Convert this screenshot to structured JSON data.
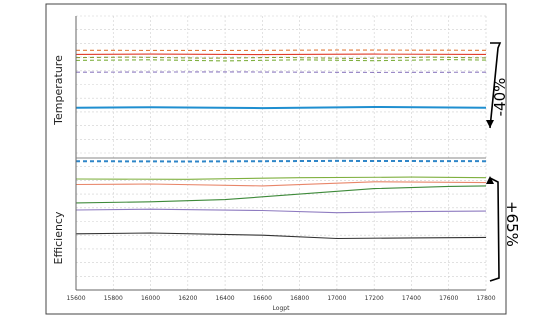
{
  "chart_data": {
    "type": "line",
    "xlabel": "Logpt",
    "x_ticks": [
      "15600",
      "15800",
      "16000",
      "16200",
      "16400",
      "16600",
      "16800",
      "17000",
      "17200",
      "17400",
      "17600",
      "17800"
    ],
    "xlim": [
      15600,
      17800
    ],
    "grid": true,
    "panels": [
      {
        "name": "Temperature",
        "label": "Temperature",
        "series": [
          {
            "color": "#e03a2a",
            "style": "solid",
            "values": [
              [
                15600,
                0.86
              ],
              [
                16000,
                0.861
              ],
              [
                16600,
                0.859
              ],
              [
                17200,
                0.861
              ],
              [
                17800,
                0.86
              ]
            ]
          },
          {
            "color": "#e07a3a",
            "style": "dashed",
            "values": [
              [
                15600,
                0.875
              ],
              [
                16400,
                0.874
              ],
              [
                17000,
                0.876
              ],
              [
                17800,
                0.875
              ]
            ]
          },
          {
            "color": "#8c9a3a",
            "style": "dashed",
            "values": [
              [
                15600,
                0.848
              ],
              [
                15900,
                0.85
              ],
              [
                16300,
                0.846
              ],
              [
                16700,
                0.849
              ],
              [
                17100,
                0.845
              ],
              [
                17500,
                0.85
              ],
              [
                17800,
                0.847
              ]
            ]
          },
          {
            "color": "#7fb03f",
            "style": "dashed",
            "values": [
              [
                15600,
                0.838
              ],
              [
                16000,
                0.84
              ],
              [
                16400,
                0.836
              ],
              [
                16800,
                0.84
              ],
              [
                17200,
                0.837
              ],
              [
                17600,
                0.841
              ],
              [
                17800,
                0.839
              ]
            ]
          },
          {
            "color": "#8e7bc0",
            "style": "dashed",
            "values": [
              [
                15600,
                0.795
              ],
              [
                16400,
                0.796
              ],
              [
                17200,
                0.794
              ],
              [
                17800,
                0.795
              ]
            ]
          },
          {
            "color": "#2f86c8",
            "style": "dashed",
            "values": [
              [
                15600,
                0.47
              ],
              [
                16200,
                0.469
              ],
              [
                17000,
                0.471
              ],
              [
                17800,
                0.47
              ]
            ]
          }
        ]
      },
      {
        "name": "Efficiency",
        "label": "Efficiency",
        "series": [
          {
            "color": "#1f8fd0",
            "style": "solid",
            "values": [
              [
                15600,
                0.665
              ],
              [
                16000,
                0.667
              ],
              [
                16600,
                0.664
              ],
              [
                17200,
                0.668
              ],
              [
                17800,
                0.665
              ]
            ]
          },
          {
            "color": "#7fb03f",
            "style": "solid",
            "values": [
              [
                15600,
                0.405
              ],
              [
                16200,
                0.404
              ],
              [
                16800,
                0.41
              ],
              [
                17400,
                0.412
              ],
              [
                17800,
                0.41
              ]
            ]
          },
          {
            "color": "#e8866a",
            "style": "solid",
            "values": [
              [
                15600,
                0.385
              ],
              [
                16000,
                0.387
              ],
              [
                16600,
                0.38
              ],
              [
                17200,
                0.395
              ],
              [
                17800,
                0.392
              ]
            ]
          },
          {
            "color": "#3e8a3a",
            "style": "solid",
            "values": [
              [
                15600,
                0.318
              ],
              [
                16000,
                0.322
              ],
              [
                16400,
                0.33
              ],
              [
                16800,
                0.35
              ],
              [
                17200,
                0.37
              ],
              [
                17600,
                0.378
              ],
              [
                17800,
                0.38
              ]
            ]
          },
          {
            "color": "#8e7bc0",
            "style": "solid",
            "values": [
              [
                15600,
                0.292
              ],
              [
                16000,
                0.295
              ],
              [
                16600,
                0.29
              ],
              [
                17000,
                0.282
              ],
              [
                17400,
                0.286
              ],
              [
                17800,
                0.288
              ]
            ]
          },
          {
            "color": "#333333",
            "style": "solid",
            "values": [
              [
                15600,
                0.205
              ],
              [
                16000,
                0.208
              ],
              [
                16600,
                0.2
              ],
              [
                17000,
                0.188
              ],
              [
                17400,
                0.19
              ],
              [
                17800,
                0.192
              ]
            ]
          }
        ]
      }
    ],
    "annotations": [
      {
        "text": "-40%",
        "panel": "Temperature"
      },
      {
        "text": "+65%",
        "panel": "Efficiency"
      }
    ]
  }
}
